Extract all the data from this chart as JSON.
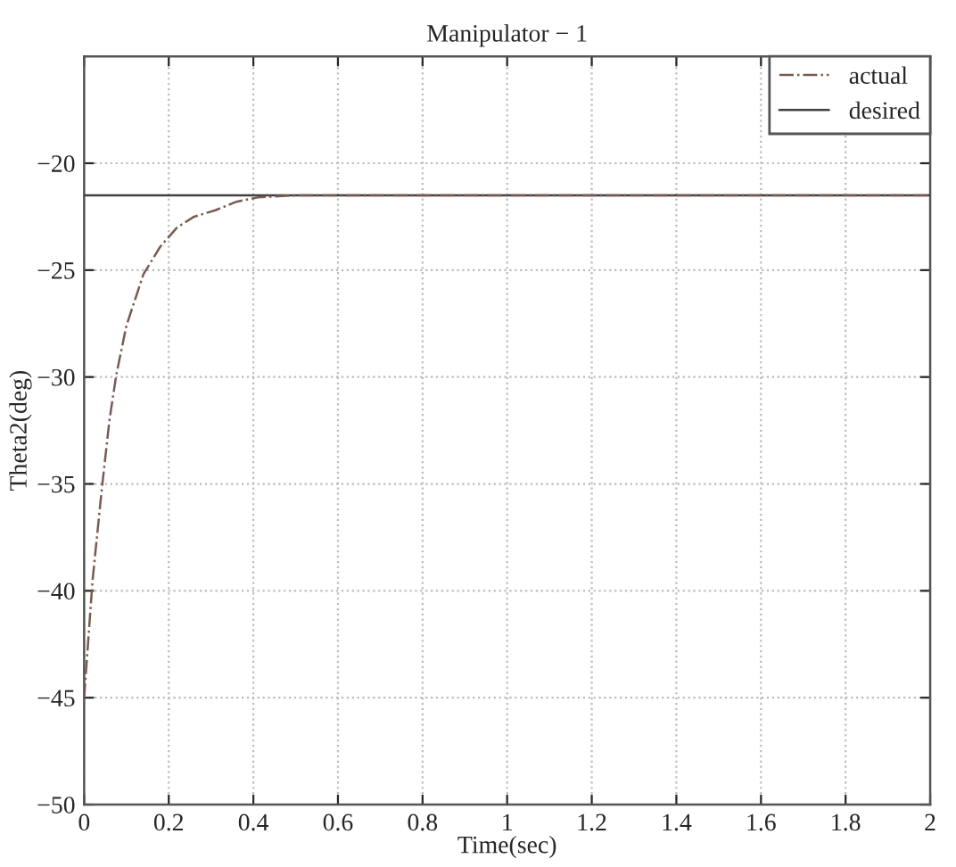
{
  "chart_data": {
    "type": "line",
    "title": "Manipulator − 1",
    "xlabel": "Time(sec)",
    "ylabel": "Theta2(deg)",
    "xlim": [
      0,
      2
    ],
    "xticks": [
      0,
      0.2,
      0.4,
      0.6,
      0.8,
      1,
      1.2,
      1.4,
      1.6,
      1.8,
      2
    ],
    "ylim": [
      -50,
      -15
    ],
    "yticks": [
      -50,
      -45,
      -40,
      -35,
      -30,
      -25,
      -20
    ],
    "grid": true,
    "legend": "top right",
    "series": [
      {
        "name": "actual",
        "color": "#7a5a50",
        "line_style": "dashdot",
        "x": [
          0,
          0.02,
          0.042,
          0.06,
          0.076,
          0.1,
          0.14,
          0.18,
          0.22,
          0.26,
          0.31,
          0.36,
          0.41,
          0.5,
          2
        ],
        "values": [
          -45,
          -39.5,
          -35.2,
          -32,
          -29.9,
          -27.6,
          -25.2,
          -23.9,
          -23,
          -22.5,
          -22.2,
          -21.8,
          -21.6,
          -21.5,
          -21.5
        ]
      },
      {
        "name": "desired",
        "color": "#404040",
        "line_style": "solid",
        "x": [
          0,
          2
        ],
        "values": [
          -21.5,
          -21.5
        ]
      }
    ]
  }
}
